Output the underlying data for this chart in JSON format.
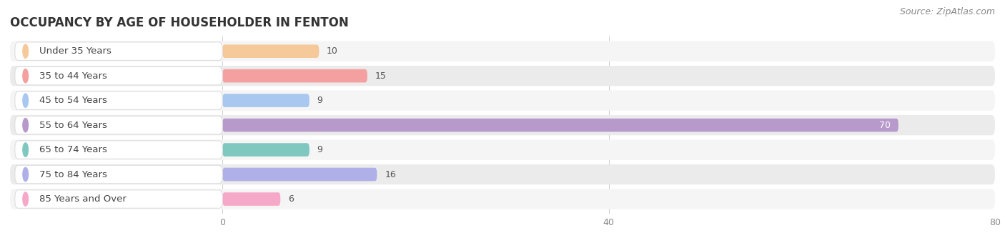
{
  "title": "OCCUPANCY BY AGE OF HOUSEHOLDER IN FENTON",
  "source": "Source: ZipAtlas.com",
  "categories": [
    "Under 35 Years",
    "35 to 44 Years",
    "45 to 54 Years",
    "55 to 64 Years",
    "65 to 74 Years",
    "75 to 84 Years",
    "85 Years and Over"
  ],
  "values": [
    10,
    15,
    9,
    70,
    9,
    16,
    6
  ],
  "bar_colors": [
    "#f5c99a",
    "#f5a0a0",
    "#a8c8f0",
    "#b899cc",
    "#7ec8c0",
    "#b0b0e8",
    "#f5a8c8"
  ],
  "xlim": [
    0,
    80
  ],
  "xticks": [
    0,
    40,
    80
  ],
  "background_color": "#ffffff",
  "row_bg_even": "#f5f5f5",
  "row_bg_odd": "#ebebeb",
  "title_fontsize": 12,
  "label_fontsize": 9.5,
  "value_fontsize": 9,
  "source_fontsize": 9
}
